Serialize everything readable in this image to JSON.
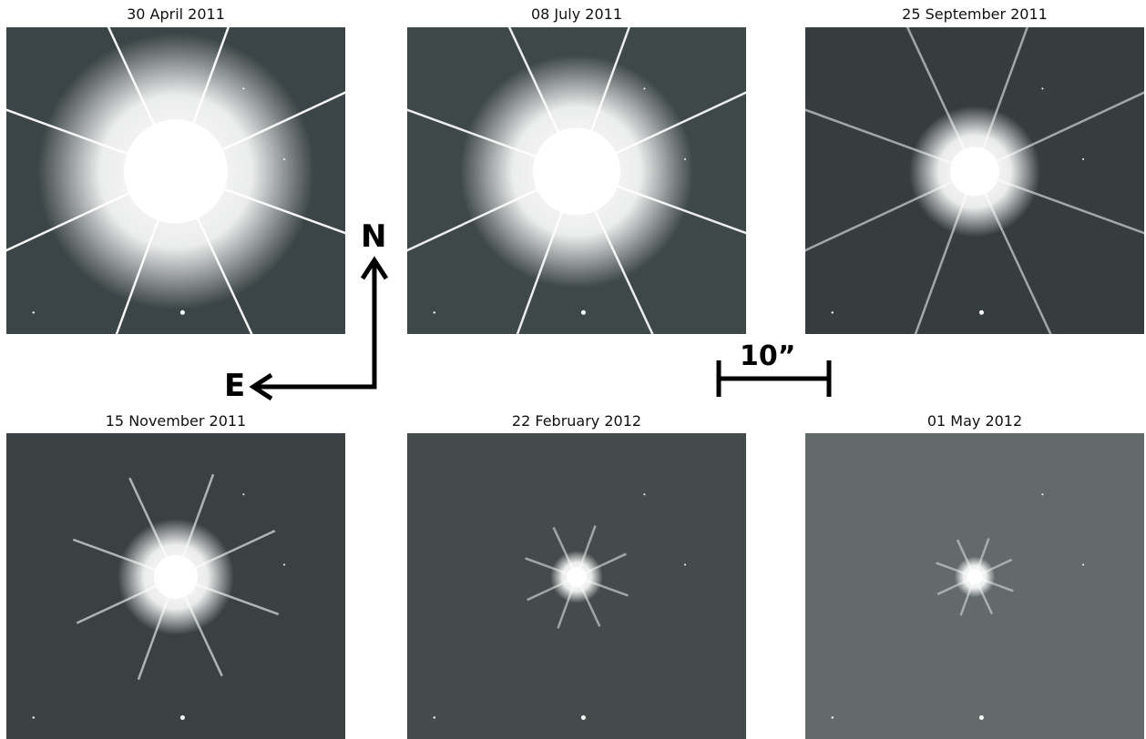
{
  "panels": [
    {
      "label": "30 April 2011",
      "bg": "#3b4446",
      "halo_radius": 95,
      "spike_length": 230,
      "spike_opacity": 0.95,
      "blob": true
    },
    {
      "label": "08 July 2011",
      "bg": "#3f4849",
      "halo_radius": 80,
      "spike_length": 220,
      "spike_opacity": 0.9,
      "blob": true
    },
    {
      "label": "25 September 2011",
      "bg": "#363d3f",
      "halo_radius": 45,
      "spike_length": 210,
      "spike_opacity": 0.55,
      "blob": false
    },
    {
      "label": "15 November 2011",
      "bg": "#3a4143",
      "halo_radius": 40,
      "spike_length": 120,
      "spike_opacity": 0.6,
      "blob": false
    },
    {
      "label": "22 February 2012",
      "bg": "#454b4b",
      "halo_radius": 18,
      "spike_length": 60,
      "spike_opacity": 0.5,
      "blob": false
    },
    {
      "label": "01 May 2012",
      "bg": "#626a6a",
      "halo_radius": 14,
      "spike_length": 45,
      "spike_opacity": 0.45,
      "blob": false
    }
  ],
  "compass": {
    "north": "N",
    "east": "E"
  },
  "scale_bar": {
    "label": "10”"
  }
}
